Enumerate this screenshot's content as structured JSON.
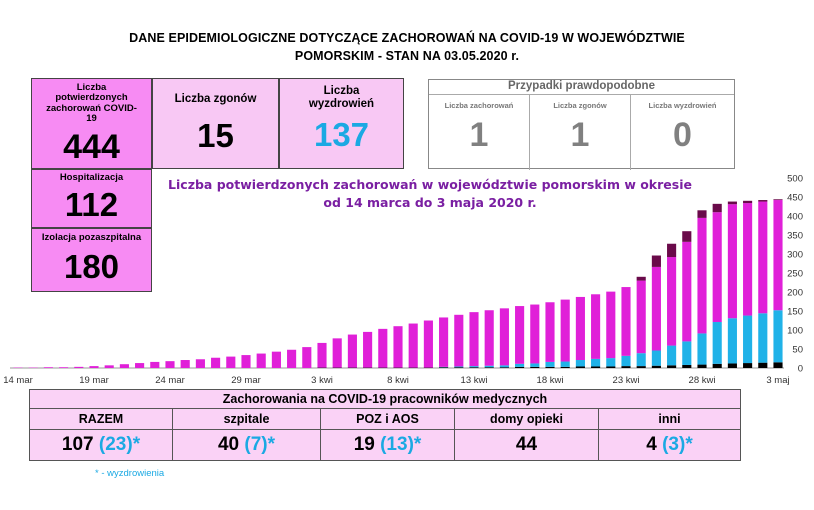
{
  "header": {
    "line1": "DANE EPIDEMIOLOGICZNE DOTYCZĄCE ZACHOROWAŃ NA COVID-19 W WOJEWÓDZTWIE",
    "line2": "POMORSKIM - STAN NA 03.05.2020 r."
  },
  "stats": {
    "confirmed_label": "Liczba potwierdzonych zachorowań COVID-19",
    "confirmed_value": "444",
    "deaths_label": "Liczba zgonów",
    "deaths_value": "15",
    "recovered_label": "Liczba wyzdrowień",
    "recovered_value": "137",
    "hospital_label": "Hospitalizacja",
    "hospital_value": "112",
    "isolation_label": "Izolacja pozaszpitalna",
    "isolation_value": "180"
  },
  "probable": {
    "title": "Przypadki prawdopodobne",
    "cases_label": "Liczba zachorowań",
    "cases_value": "1",
    "deaths_label": "Liczba zgonów",
    "deaths_value": "1",
    "recovered_label": "Liczba wyzdrowień",
    "recovered_value": "0"
  },
  "chart_data": {
    "type": "bar",
    "title_line1": "Liczba potwierdzonych zachorowań w województwie pomorskim w okresie",
    "title_line2": "od 14 marca do 3 maja 2020 r.",
    "x_tick_labels": [
      "14 mar",
      "19 mar",
      "24 mar",
      "29 mar",
      "3 kwi",
      "8 kwi",
      "13 kwi",
      "18 kwi",
      "23 kwi",
      "28 kwi",
      "3 maj"
    ],
    "y_ticks": [
      0,
      50,
      100,
      150,
      200,
      250,
      300,
      350,
      400,
      450,
      500
    ],
    "ylim": [
      0,
      500
    ],
    "stacked": true,
    "series_colors": {
      "deaths": "#000000",
      "recovered": "#20b2e8",
      "active": "#e020d8",
      "probable": "#6a0a4a"
    },
    "categories": [
      "14 mar",
      "15 mar",
      "16 mar",
      "17 mar",
      "18 mar",
      "19 mar",
      "20 mar",
      "21 mar",
      "22 mar",
      "23 mar",
      "24 mar",
      "25 mar",
      "26 mar",
      "27 mar",
      "28 mar",
      "29 mar",
      "30 mar",
      "31 mar",
      "1 kwi",
      "2 kwi",
      "3 kwi",
      "4 kwi",
      "5 kwi",
      "6 kwi",
      "7 kwi",
      "8 kwi",
      "9 kwi",
      "10 kwi",
      "11 kwi",
      "12 kwi",
      "13 kwi",
      "14 kwi",
      "15 kwi",
      "16 kwi",
      "17 kwi",
      "18 kwi",
      "19 kwi",
      "20 kwi",
      "21 kwi",
      "22 kwi",
      "23 kwi",
      "24 kwi",
      "25 kwi",
      "26 kwi",
      "27 kwi",
      "28 kwi",
      "29 kwi",
      "30 kwi",
      "1 maj",
      "2 maj",
      "3 maj"
    ],
    "total": [
      1,
      1,
      2,
      2,
      3,
      5,
      7,
      10,
      13,
      16,
      18,
      21,
      23,
      27,
      30,
      34,
      38,
      43,
      48,
      55,
      66,
      78,
      88,
      95,
      103,
      110,
      117,
      125,
      133,
      140,
      147,
      152,
      157,
      163,
      167,
      173,
      180,
      187,
      194,
      201,
      213,
      240,
      296,
      327,
      360,
      415,
      432,
      438,
      440,
      442,
      444
    ],
    "probable_cap": [
      0,
      0,
      0,
      0,
      0,
      0,
      0,
      0,
      0,
      0,
      0,
      0,
      0,
      0,
      0,
      0,
      0,
      0,
      0,
      0,
      0,
      0,
      0,
      0,
      0,
      0,
      0,
      0,
      0,
      0,
      0,
      0,
      0,
      0,
      0,
      0,
      0,
      0,
      0,
      0,
      0,
      10,
      30,
      35,
      28,
      20,
      22,
      7,
      6,
      4,
      2
    ],
    "recovered": [
      0,
      0,
      0,
      0,
      0,
      0,
      0,
      0,
      0,
      0,
      0,
      0,
      0,
      0,
      0,
      0,
      0,
      0,
      0,
      0,
      0,
      0,
      0,
      0,
      0,
      0,
      0,
      0,
      1,
      2,
      3,
      4,
      5,
      8,
      9,
      13,
      14,
      17,
      20,
      22,
      27,
      34,
      40,
      52,
      62,
      82,
      110,
      119,
      125,
      130,
      137
    ],
    "deaths": [
      0,
      0,
      0,
      0,
      0,
      0,
      0,
      0,
      0,
      0,
      0,
      0,
      0,
      0,
      0,
      0,
      0,
      0,
      0,
      0,
      1,
      1,
      1,
      1,
      1,
      1,
      1,
      1,
      2,
      2,
      2,
      2,
      2,
      3,
      3,
      3,
      3,
      4,
      4,
      4,
      5,
      5,
      6,
      7,
      8,
      9,
      11,
      12,
      13,
      14,
      15
    ]
  },
  "medical": {
    "title": "Zachorowania na COVID-19 pracowników medycznych",
    "columns": [
      {
        "label": "RAZEM",
        "value": "107",
        "recovered": "(23)",
        "star": "*"
      },
      {
        "label": "szpitale",
        "value": "40",
        "recovered": "(7)",
        "star": "*"
      },
      {
        "label": "POZ i AOS",
        "value": "19",
        "recovered": "(13)",
        "star": "*"
      },
      {
        "label": "domy opieki",
        "value": "44",
        "recovered": "",
        "star": ""
      },
      {
        "label": "inni",
        "value": "4",
        "recovered": "(3)",
        "star": "*"
      }
    ],
    "footnote": "*   - wyzdrowienia"
  }
}
